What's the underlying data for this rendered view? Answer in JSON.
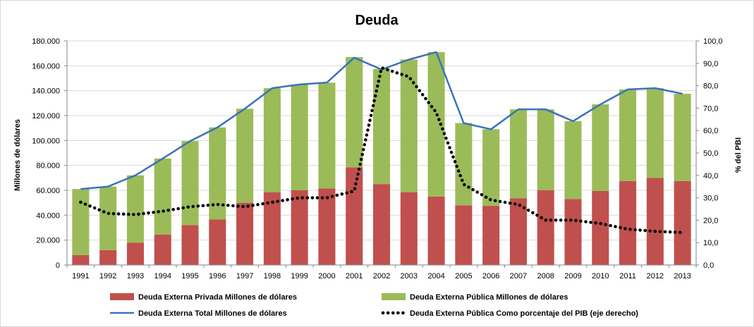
{
  "colors": {
    "privada": "#c0504d",
    "publica": "#9bbb59",
    "total": "#3a73b8",
    "pct": "#000000",
    "grid": "#d9d9d9",
    "axis": "#868686"
  },
  "chart_data": {
    "type": "bar",
    "title": "Deuda",
    "ylabel": "Millones de dólares",
    "y2label": "% del PBI",
    "ylim": [
      0,
      180000
    ],
    "y2lim": [
      0,
      100
    ],
    "yticks": [
      "0",
      "20.000",
      "40.000",
      "60.000",
      "80.000",
      "100.000",
      "120.000",
      "140.000",
      "160.000",
      "180.000"
    ],
    "y2ticks": [
      "0,0",
      "10,0",
      "20,0",
      "30,0",
      "40,0",
      "50,0",
      "60,0",
      "70,0",
      "80,0",
      "90,0",
      "100,0"
    ],
    "categories": [
      "1991",
      "1992",
      "1993",
      "1994",
      "1995",
      "1996",
      "1997",
      "1998",
      "1999",
      "2000",
      "2001",
      "2002",
      "2003",
      "2004",
      "2005",
      "2006",
      "2007",
      "2008",
      "2009",
      "2010",
      "2011",
      "2012",
      "2013"
    ],
    "grid": true,
    "legend_position": "bottom",
    "series": [
      {
        "name": "Deuda Externa Privada Millones de dólares",
        "type": "bar-stacked",
        "values": [
          8000,
          12000,
          18000,
          24500,
          32000,
          36500,
          50000,
          58500,
          60000,
          61500,
          78500,
          65000,
          58500,
          55000,
          48000,
          47500,
          53500,
          60000,
          53000,
          59500,
          67500,
          70000,
          67500
        ]
      },
      {
        "name": "Deuda Externa Pública Millones de dólares",
        "type": "bar-stacked",
        "values": [
          53000,
          51000,
          54000,
          61000,
          67500,
          74000,
          75500,
          83500,
          85000,
          85000,
          88500,
          92500,
          106500,
          116000,
          66000,
          61500,
          71500,
          65000,
          62500,
          69500,
          73500,
          72000,
          70000
        ]
      },
      {
        "name": "Deuda Externa Total Millones de dólares",
        "type": "line",
        "axis": "left",
        "values": [
          61000,
          63000,
          72000,
          85500,
          99500,
          110500,
          125500,
          142000,
          145000,
          146500,
          166500,
          157000,
          165000,
          171000,
          114000,
          109000,
          125000,
          125000,
          115500,
          129000,
          141000,
          142000,
          137500
        ]
      },
      {
        "name": "Deuda Externa Pública Como porcentaje del PIB (eje derecho)",
        "type": "line-dotted",
        "axis": "right",
        "values": [
          28,
          23,
          22.5,
          24,
          26,
          27,
          26,
          28,
          30,
          30,
          33,
          88,
          84,
          68,
          36,
          29,
          27,
          20,
          20,
          18.5,
          16,
          15,
          14.5
        ]
      }
    ]
  }
}
